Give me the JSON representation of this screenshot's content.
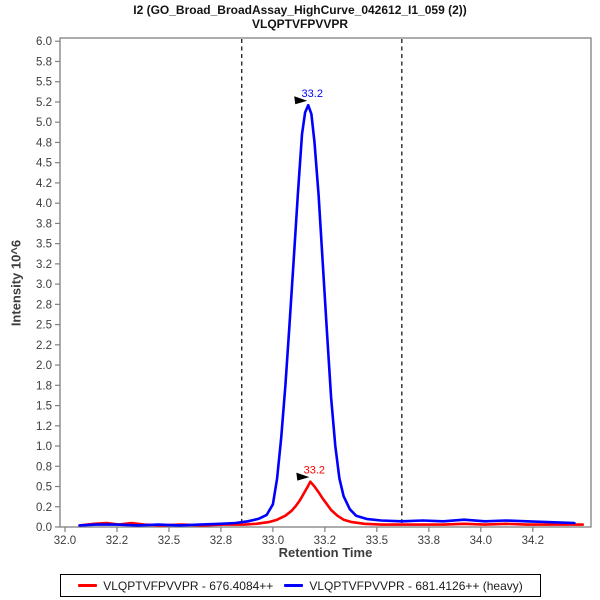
{
  "chart_data": {
    "type": "line",
    "title": "I2 (GO_Broad_BroadAssay_HighCurve_042612_I1_059 (2))",
    "subtitle": "VLQPTVFPVVPR",
    "xlabel": "Retention Time",
    "ylabel": "Intensity 10^6",
    "xlim": [
      31.976,
      34.53
    ],
    "ylim": [
      0,
      6.04
    ],
    "grid": false,
    "legend_position": "bottom",
    "frame_color": "#808080",
    "tick_text_color": "#3d3d3d",
    "boundary_color": "#2b2b2b",
    "xticks": [
      32.0,
      32.25,
      32.5,
      32.75,
      33.0,
      33.25,
      33.5,
      33.75,
      34.0,
      34.25
    ],
    "xtick_labels": [
      "32.0",
      "32.2",
      "32.5",
      "32.8",
      "33.0",
      "33.2",
      "33.5",
      "33.8",
      "34.0",
      "34.2"
    ],
    "yticks": [
      0,
      0.25,
      0.5,
      0.75,
      1.0,
      1.25,
      1.5,
      1.75,
      2.0,
      2.25,
      2.5,
      2.75,
      3.0,
      3.25,
      3.5,
      3.75,
      4.0,
      4.25,
      4.5,
      4.75,
      5.0,
      5.25,
      5.5,
      5.75,
      6.0
    ],
    "ytick_labels": [
      "0.0",
      "0.2",
      "0.5",
      "0.8",
      "1.0",
      "1.2",
      "1.5",
      "1.8",
      "2.0",
      "2.2",
      "2.5",
      "2.8",
      "3.0",
      "3.2",
      "3.5",
      "3.8",
      "4.0",
      "4.2",
      "4.5",
      "4.8",
      "5.0",
      "5.2",
      "5.5",
      "5.8",
      "6.0"
    ],
    "peak_boundaries": [
      32.85,
      33.62
    ],
    "series": [
      {
        "name": "VLQPTVFPVVPR - 676.4084++",
        "color": "#ff0000",
        "peak": {
          "rt": 33.18,
          "intensity": 0.56,
          "label": "33.2"
        },
        "points": [
          [
            32.07,
            0.02
          ],
          [
            32.14,
            0.04
          ],
          [
            32.2,
            0.05
          ],
          [
            32.26,
            0.03
          ],
          [
            32.32,
            0.05
          ],
          [
            32.38,
            0.03
          ],
          [
            32.46,
            0.02
          ],
          [
            32.56,
            0.03
          ],
          [
            32.66,
            0.02
          ],
          [
            32.76,
            0.03
          ],
          [
            32.86,
            0.03
          ],
          [
            32.92,
            0.04
          ],
          [
            32.98,
            0.06
          ],
          [
            33.02,
            0.09
          ],
          [
            33.06,
            0.14
          ],
          [
            33.09,
            0.2
          ],
          [
            33.11,
            0.26
          ],
          [
            33.13,
            0.33
          ],
          [
            33.15,
            0.42
          ],
          [
            33.17,
            0.51
          ],
          [
            33.18,
            0.56
          ],
          [
            33.2,
            0.5
          ],
          [
            33.22,
            0.43
          ],
          [
            33.24,
            0.35
          ],
          [
            33.26,
            0.28
          ],
          [
            33.28,
            0.21
          ],
          [
            33.31,
            0.14
          ],
          [
            33.34,
            0.09
          ],
          [
            33.38,
            0.06
          ],
          [
            33.44,
            0.04
          ],
          [
            33.52,
            0.03
          ],
          [
            33.62,
            0.03
          ],
          [
            33.72,
            0.03
          ],
          [
            33.82,
            0.03
          ],
          [
            33.92,
            0.04
          ],
          [
            34.02,
            0.03
          ],
          [
            34.12,
            0.04
          ],
          [
            34.22,
            0.03
          ],
          [
            34.35,
            0.03
          ],
          [
            34.49,
            0.03
          ]
        ]
      },
      {
        "name": "VLQPTVFPVVPR - 681.4126++ (heavy)",
        "color": "#0000ff",
        "peak": {
          "rt": 33.17,
          "intensity": 5.21,
          "label": "33.2"
        },
        "points": [
          [
            32.07,
            0.02
          ],
          [
            32.15,
            0.03
          ],
          [
            32.25,
            0.03
          ],
          [
            32.35,
            0.02
          ],
          [
            32.45,
            0.03
          ],
          [
            32.55,
            0.02
          ],
          [
            32.65,
            0.03
          ],
          [
            32.75,
            0.04
          ],
          [
            32.82,
            0.05
          ],
          [
            32.88,
            0.07
          ],
          [
            32.93,
            0.1
          ],
          [
            32.97,
            0.15
          ],
          [
            33.0,
            0.28
          ],
          [
            33.02,
            0.6
          ],
          [
            33.04,
            1.1
          ],
          [
            33.06,
            1.75
          ],
          [
            33.08,
            2.5
          ],
          [
            33.1,
            3.3
          ],
          [
            33.12,
            4.1
          ],
          [
            33.14,
            4.85
          ],
          [
            33.155,
            5.12
          ],
          [
            33.17,
            5.21
          ],
          [
            33.185,
            5.1
          ],
          [
            33.2,
            4.75
          ],
          [
            33.22,
            4.1
          ],
          [
            33.24,
            3.25
          ],
          [
            33.26,
            2.4
          ],
          [
            33.28,
            1.6
          ],
          [
            33.3,
            1.0
          ],
          [
            33.32,
            0.6
          ],
          [
            33.34,
            0.38
          ],
          [
            33.37,
            0.22
          ],
          [
            33.4,
            0.14
          ],
          [
            33.45,
            0.1
          ],
          [
            33.52,
            0.08
          ],
          [
            33.62,
            0.07
          ],
          [
            33.72,
            0.08
          ],
          [
            33.82,
            0.07
          ],
          [
            33.92,
            0.09
          ],
          [
            34.02,
            0.07
          ],
          [
            34.12,
            0.08
          ],
          [
            34.22,
            0.07
          ],
          [
            34.32,
            0.06
          ],
          [
            34.45,
            0.05
          ]
        ]
      }
    ]
  }
}
